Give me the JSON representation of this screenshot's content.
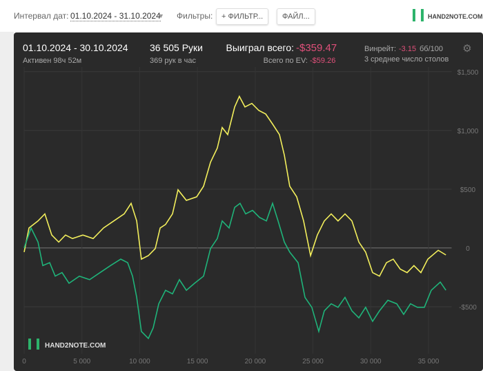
{
  "toolbar": {
    "interval_label": "Интервал дат:",
    "interval": "01.10.2024 - 31.10.2024",
    "filters_label": "Фильтры:",
    "filter_button": "+ ФИЛЬТР...",
    "file_button": "ФАЙЛ...",
    "logo": "HAND2NOTE.COM"
  },
  "chart_data": {
    "type": "line",
    "stats": {
      "period": "01.10.2024 - 30.10.2024",
      "active": "Активен 98ч 52м",
      "hands": "36 505 Руки",
      "hands_per_hour": "369 рук в час",
      "won_label": "Выиграл всего:",
      "won": "-$359.47",
      "ev_label": "Всего по EV:",
      "ev": "-$59.26",
      "winrate_label": "Винрейт:",
      "winrate": "-3.15",
      "winrate_unit": "бб/100",
      "tables": "3 среднее число столов"
    },
    "watermark": "HAND2NOTE.COM",
    "xlim": [
      0,
      37000
    ],
    "ylim": [
      -900,
      1540
    ],
    "xticks": [
      0,
      {
        "value": 5000,
        "label": "5 000"
      },
      {
        "value": 10000,
        "label": "10 000"
      },
      {
        "value": 15000,
        "label": "15 000"
      },
      {
        "value": 20000,
        "label": "20 000"
      },
      {
        "value": 25000,
        "label": "25 000"
      },
      {
        "value": 30000,
        "label": "30 000"
      },
      {
        "value": 35000,
        "label": "35 000"
      }
    ],
    "yticks": [
      {
        "value": -500,
        "label": "-$500"
      },
      0,
      {
        "value": 500,
        "label": "$500"
      },
      {
        "value": 1000,
        "label": "$1,000"
      },
      {
        "value": 1500,
        "label": "$1,500"
      }
    ],
    "grid": true,
    "series": [
      {
        "name": "Всего по EV",
        "color": "#f3ef5c",
        "x": [
          0,
          420,
          1200,
          1790,
          2390,
          2990,
          3580,
          4180,
          5080,
          5970,
          6870,
          7760,
          8660,
          9260,
          9740,
          10150,
          10750,
          11350,
          11770,
          12240,
          12840,
          13320,
          14040,
          14930,
          15530,
          16130,
          16720,
          17140,
          17620,
          18220,
          18630,
          19110,
          19710,
          20310,
          20910,
          21500,
          22100,
          22520,
          22990,
          23590,
          24190,
          24790,
          25380,
          25980,
          26580,
          27170,
          27770,
          28370,
          28970,
          29560,
          30160,
          30760,
          31360,
          31950,
          32550,
          33150,
          33740,
          34340,
          34940,
          35840,
          36505
        ],
        "values": [
          -35,
          170,
          230,
          290,
          110,
          50,
          110,
          80,
          110,
          80,
          170,
          230,
          290,
          380,
          230,
          -95,
          -65,
          -5,
          170,
          200,
          290,
          495,
          405,
          435,
          525,
          730,
          850,
          1025,
          965,
          1200,
          1290,
          1200,
          1230,
          1170,
          1140,
          1055,
          965,
          790,
          525,
          435,
          230,
          -65,
          110,
          230,
          290,
          230,
          290,
          230,
          50,
          -35,
          -210,
          -240,
          -125,
          -95,
          -180,
          -210,
          -150,
          -210,
          -95,
          -20,
          -59.26
        ]
      },
      {
        "name": "Выиграл всего",
        "color": "#1fb47a",
        "x": [
          0,
          600,
          1200,
          1610,
          2210,
          2690,
          3280,
          3880,
          4780,
          5670,
          6570,
          7470,
          8360,
          8960,
          9380,
          9740,
          10150,
          10750,
          11170,
          11650,
          12240,
          12840,
          13440,
          14040,
          14750,
          15530,
          16130,
          16720,
          17140,
          17740,
          18220,
          18690,
          19170,
          19770,
          20370,
          20970,
          21500,
          21980,
          22520,
          22990,
          23710,
          24310,
          24900,
          25500,
          25980,
          26580,
          27170,
          27770,
          28370,
          28970,
          29560,
          30160,
          30760,
          31480,
          32250,
          32850,
          33440,
          34040,
          34640,
          35240,
          36020,
          36505
        ],
        "values": [
          0,
          170,
          50,
          -150,
          -125,
          -240,
          -210,
          -300,
          -240,
          -270,
          -210,
          -150,
          -95,
          -125,
          -240,
          -420,
          -710,
          -770,
          -680,
          -475,
          -360,
          -390,
          -270,
          -360,
          -300,
          -240,
          -5,
          80,
          230,
          170,
          345,
          380,
          290,
          320,
          260,
          230,
          380,
          230,
          50,
          -35,
          -125,
          -420,
          -505,
          -710,
          -535,
          -475,
          -505,
          -420,
          -535,
          -595,
          -505,
          -625,
          -535,
          -445,
          -475,
          -565,
          -475,
          -505,
          -505,
          -360,
          -290,
          -359.47
        ]
      }
    ]
  }
}
